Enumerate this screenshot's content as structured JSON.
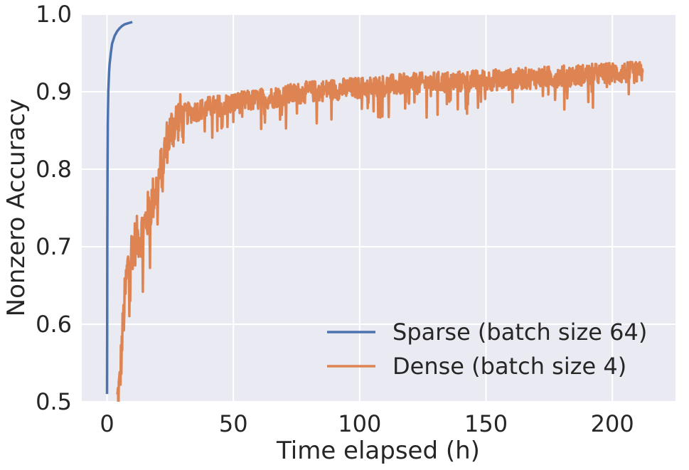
{
  "chart_data": {
    "type": "line",
    "title": "",
    "xlabel": "Time elapsed (h)",
    "ylabel": "Nonzero Accuracy",
    "xlim": [
      -10,
      225
    ],
    "ylim": [
      0.5,
      1.0
    ],
    "x_ticks": [
      0,
      50,
      100,
      150,
      200
    ],
    "x_tick_labels": [
      "0",
      "50",
      "100",
      "150",
      "200"
    ],
    "y_ticks": [
      0.5,
      0.6,
      0.7,
      0.8,
      0.9,
      1.0
    ],
    "y_tick_labels": [
      "0.5",
      "0.6",
      "0.7",
      "0.8",
      "0.9",
      "1.0"
    ],
    "grid": true,
    "background": "#eaeaf2",
    "legend_position": "lower-right",
    "series": [
      {
        "name": "Sparse (batch size 64)",
        "color": "#4c72b0",
        "noise": 0.0,
        "x": [
          0,
          0.05,
          0.1,
          0.2,
          0.3,
          0.5,
          0.8,
          1.0,
          1.5,
          2,
          3,
          4,
          5,
          6,
          7,
          8,
          9,
          10
        ],
        "y": [
          0.51,
          0.58,
          0.7,
          0.8,
          0.86,
          0.9,
          0.925,
          0.935,
          0.95,
          0.962,
          0.972,
          0.978,
          0.982,
          0.985,
          0.987,
          0.988,
          0.989,
          0.99
        ]
      },
      {
        "name": "Dense (batch size 4)",
        "color": "#dd8452",
        "noise": 0.014,
        "x": [
          4,
          5,
          6,
          7,
          8,
          10,
          12,
          14,
          16,
          18,
          20,
          22,
          24,
          26,
          28,
          30,
          35,
          40,
          50,
          60,
          70,
          80,
          90,
          100,
          110,
          120,
          130,
          140,
          150,
          160,
          170,
          180,
          190,
          200,
          212
        ],
        "y": [
          0.5,
          0.52,
          0.58,
          0.63,
          0.67,
          0.7,
          0.71,
          0.72,
          0.74,
          0.76,
          0.78,
          0.81,
          0.84,
          0.855,
          0.865,
          0.87,
          0.875,
          0.88,
          0.885,
          0.89,
          0.895,
          0.9,
          0.903,
          0.905,
          0.908,
          0.91,
          0.912,
          0.913,
          0.915,
          0.916,
          0.918,
          0.92,
          0.922,
          0.924,
          0.925
        ]
      }
    ]
  }
}
